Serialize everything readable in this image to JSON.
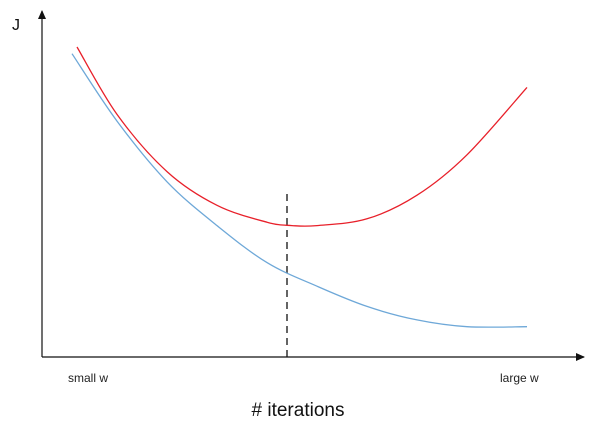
{
  "chart_data": {
    "type": "line",
    "title": "",
    "xlabel": "# iterations",
    "ylabel": "J",
    "x_tick_labels": [
      "small w",
      "large w"
    ],
    "xlim": [
      0,
      1
    ],
    "ylim": [
      0,
      1
    ],
    "grid": false,
    "legend": "none",
    "series": [
      {
        "color": "#e8202a",
        "x": [
          0.07,
          0.15,
          0.25,
          0.35,
          0.45,
          0.5,
          0.55,
          0.65,
          0.75,
          0.85,
          0.97
        ],
        "y": [
          0.92,
          0.72,
          0.55,
          0.45,
          0.4,
          0.39,
          0.39,
          0.41,
          0.48,
          0.6,
          0.8
        ]
      },
      {
        "color": "#6ea8d8",
        "x": [
          0.06,
          0.15,
          0.25,
          0.35,
          0.45,
          0.55,
          0.65,
          0.75,
          0.85,
          0.97
        ],
        "y": [
          0.9,
          0.7,
          0.52,
          0.39,
          0.28,
          0.21,
          0.15,
          0.11,
          0.09,
          0.09
        ]
      }
    ],
    "reference_line": {
      "x": 0.49,
      "style": "dashed",
      "color": "#222222"
    }
  }
}
